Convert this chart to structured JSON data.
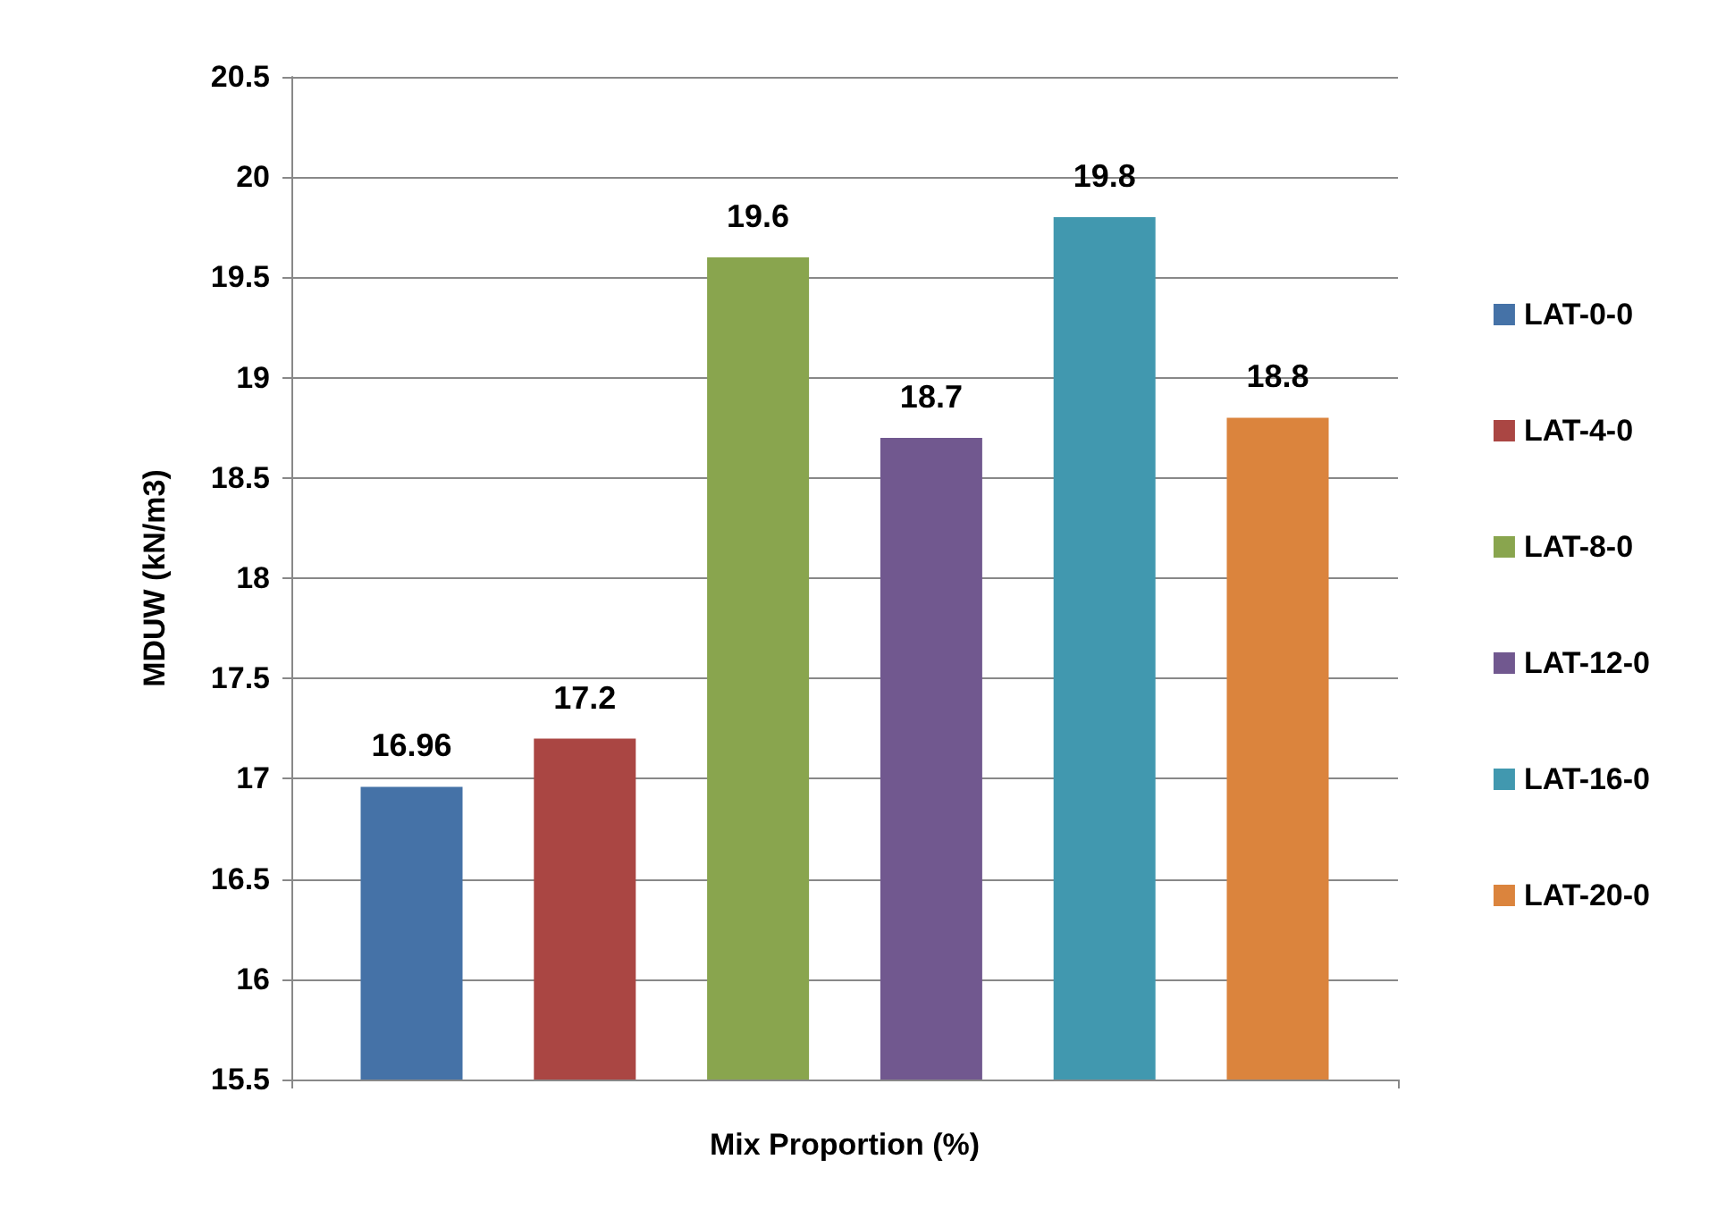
{
  "chart_data": {
    "type": "bar",
    "xlabel": "Mix Proportion (%)",
    "ylabel": "MDUW (kN/m3)",
    "categories": [
      null
    ],
    "series": [
      {
        "name": "LAT-0-0",
        "color": "#4572a7",
        "values": [
          16.96
        ]
      },
      {
        "name": "LAT-4-0",
        "color": "#aa4643",
        "values": [
          17.2
        ]
      },
      {
        "name": "LAT-8-0",
        "color": "#89a54e",
        "values": [
          19.6
        ]
      },
      {
        "name": "LAT-12-0",
        "color": "#71588f",
        "values": [
          18.7
        ]
      },
      {
        "name": "LAT-16-0",
        "color": "#4198af",
        "values": [
          19.8
        ]
      },
      {
        "name": "LAT-20-0",
        "color": "#db843d",
        "values": [
          18.8
        ]
      }
    ],
    "ylim": [
      15.5,
      20.5
    ],
    "yticks": [
      15.5,
      16,
      16.5,
      17,
      17.5,
      18,
      18.5,
      19,
      19.5,
      20,
      20.5
    ],
    "grid": "y",
    "legend": "right",
    "data_labels": true
  }
}
